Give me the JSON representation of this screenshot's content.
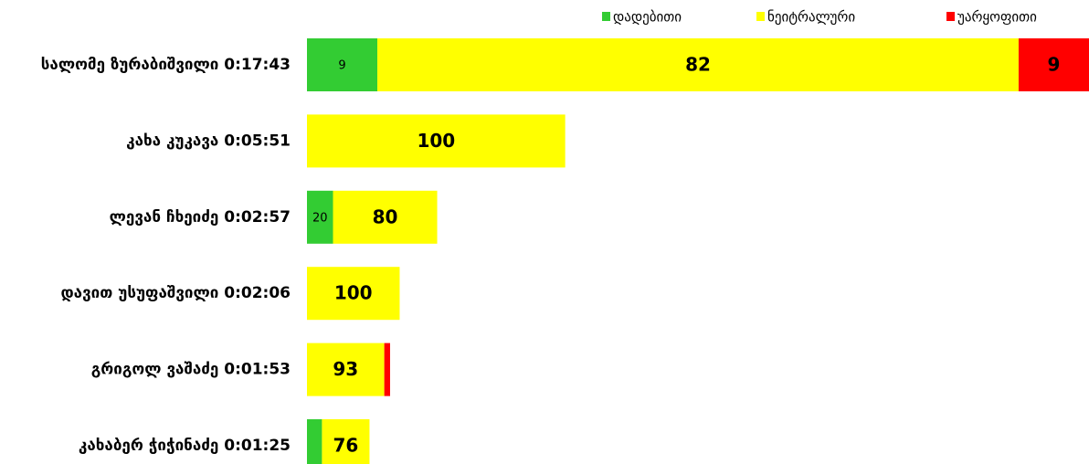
{
  "chart_data": {
    "type": "stacked_bar_horizontal",
    "categories": [
      "სალომე ზურაბიშვილი 0:17:43",
      "კახა კუკავა 0:05:51",
      "ლევან ჩხეიძე 0:02:57",
      "დავით უსუფაშვილი 0:02:06",
      "გრიგოლ ვაშაძე 0:01:53",
      "კახაბერ ჭიჭინაძე 0:01:25"
    ],
    "series": [
      {
        "name": "დადებითი",
        "color": "#33cc33",
        "values": [
          9,
          0,
          20,
          0,
          0,
          24
        ]
      },
      {
        "name": "ნეიტრალური",
        "color": "#ffff00",
        "values": [
          82,
          100,
          80,
          100,
          93,
          76
        ]
      },
      {
        "name": "უარყოფითი",
        "color": "#ff0000",
        "values": [
          9,
          0,
          0,
          0,
          7,
          0
        ]
      }
    ],
    "legend": "top"
  }
}
